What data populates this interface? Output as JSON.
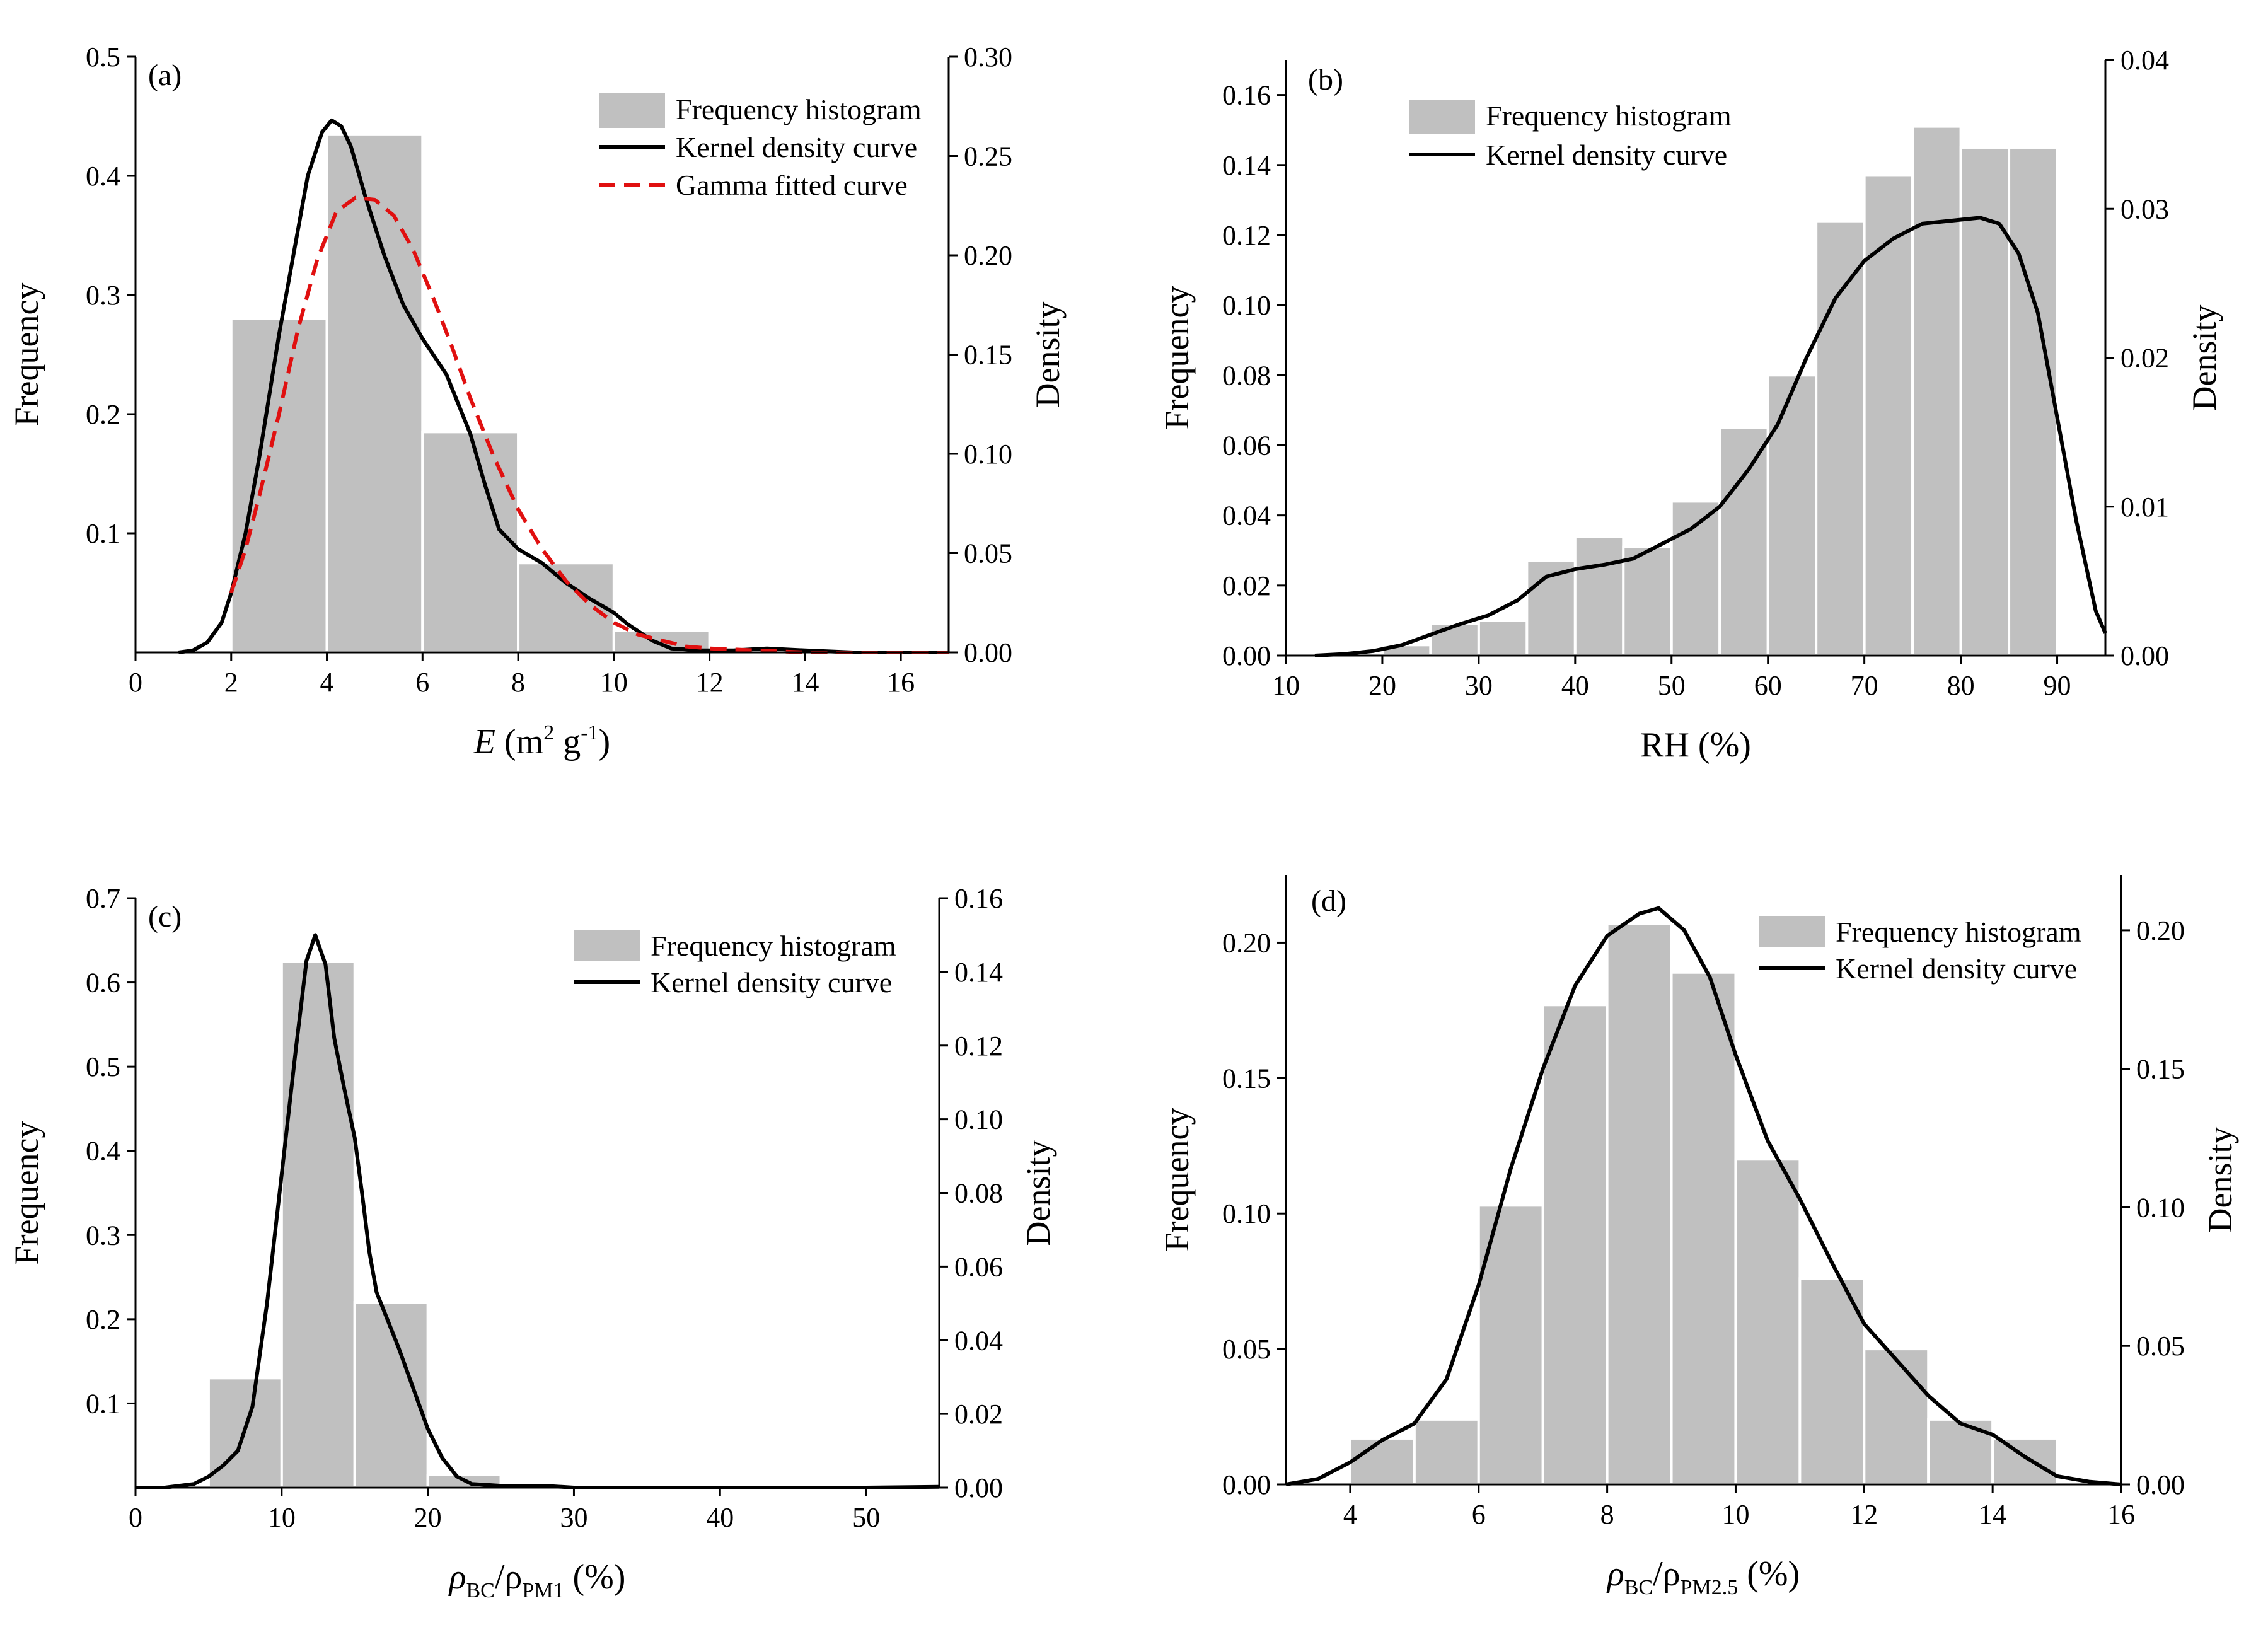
{
  "colors": {
    "bar": "#c0c0c0",
    "bar_edge": "#ffffff",
    "kde": "#000000",
    "gamma": "#e01010",
    "axis": "#000000"
  },
  "chart_data": [
    {
      "id": "a",
      "type": "bar",
      "panel_label": "(a)",
      "xlabel": "E (m² g⁻¹)",
      "xlabel_main": "E",
      "xlabel_rest": " (m",
      "xlabel_sup1": "2",
      "xlabel_mid": " g",
      "xlabel_sup2": "-1",
      "xlabel_end": ")",
      "ylabel": "Frequency",
      "y2label": "Density",
      "xlim": [
        0,
        17
      ],
      "ylim": [
        0,
        0.5
      ],
      "y2lim": [
        0,
        0.3
      ],
      "xticks": [
        0,
        2,
        4,
        6,
        8,
        10,
        12,
        14,
        16
      ],
      "yticks": [
        0.1,
        0.2,
        0.3,
        0.4,
        0.5
      ],
      "y2ticks": [
        0.0,
        0.05,
        0.1,
        0.15,
        0.2,
        0.25,
        0.3
      ],
      "xtick_labels": [
        "0",
        "2",
        "4",
        "6",
        "8",
        "10",
        "12",
        "14",
        "16"
      ],
      "ytick_labels": [
        "0.1",
        "0.2",
        "0.3",
        "0.4",
        "0.5"
      ],
      "y2tick_labels": [
        "0.00",
        "0.05",
        "0.10",
        "0.15",
        "0.20",
        "0.25",
        "0.30"
      ],
      "legend": {
        "position": "top-right",
        "entries": [
          "Frequency histogram",
          "Kernel density curve",
          "Gamma fitted curve"
        ]
      },
      "histogram": {
        "bin_edges": [
          2,
          4,
          6,
          8,
          10,
          12
        ],
        "values": [
          0.28,
          0.435,
          0.185,
          0.075,
          0.018
        ]
      },
      "series": [
        {
          "name": "Kernel density curve",
          "style": "solid",
          "x": [
            0.9,
            1.2,
            1.5,
            1.8,
            2.0,
            2.3,
            2.6,
            3.0,
            3.3,
            3.6,
            3.9,
            4.1,
            4.3,
            4.5,
            4.8,
            5.2,
            5.6,
            6.0,
            6.5,
            7.0,
            7.3,
            7.6,
            8.0,
            8.5,
            9.0,
            9.5,
            10.0,
            10.3,
            10.8,
            11.2,
            11.8,
            12.5,
            13.2,
            14.0,
            15.0,
            16.0,
            17.0
          ],
          "y": [
            0.0,
            0.001,
            0.005,
            0.015,
            0.03,
            0.06,
            0.1,
            0.16,
            0.2,
            0.24,
            0.262,
            0.268,
            0.265,
            0.255,
            0.23,
            0.2,
            0.175,
            0.158,
            0.14,
            0.11,
            0.085,
            0.062,
            0.052,
            0.045,
            0.035,
            0.027,
            0.02,
            0.014,
            0.006,
            0.002,
            0.001,
            0.001,
            0.002,
            0.001,
            0.0,
            0.0,
            0.0
          ]
        },
        {
          "name": "Gamma fitted curve",
          "style": "dashed",
          "x": [
            2.0,
            2.3,
            2.6,
            3.0,
            3.4,
            3.8,
            4.2,
            4.6,
            5.0,
            5.4,
            5.8,
            6.2,
            6.6,
            7.0,
            7.5,
            8.0,
            8.5,
            9.0,
            9.5,
            10.0,
            10.5,
            11.0,
            11.5,
            12.0,
            13.0,
            14.0,
            15.0,
            16.0,
            17.0
          ],
          "y": [
            0.03,
            0.052,
            0.08,
            0.12,
            0.163,
            0.198,
            0.222,
            0.229,
            0.228,
            0.22,
            0.203,
            0.18,
            0.155,
            0.128,
            0.098,
            0.072,
            0.052,
            0.036,
            0.024,
            0.015,
            0.009,
            0.006,
            0.003,
            0.002,
            0.001,
            0.0,
            0.0,
            0.0,
            0.0
          ]
        }
      ]
    },
    {
      "id": "b",
      "type": "bar",
      "panel_label": "(b)",
      "xlabel": "RH (%)",
      "ylabel": "Frequency",
      "y2label": "Density",
      "xlim": [
        10,
        95
      ],
      "ylim": [
        0,
        0.17
      ],
      "y2lim": [
        0,
        0.04
      ],
      "xticks": [
        10,
        20,
        30,
        40,
        50,
        60,
        70,
        80,
        90
      ],
      "yticks": [
        0.0,
        0.02,
        0.04,
        0.06,
        0.08,
        0.1,
        0.12,
        0.14,
        0.16
      ],
      "y2ticks": [
        0.0,
        0.01,
        0.02,
        0.03,
        0.04
      ],
      "xtick_labels": [
        "10",
        "20",
        "30",
        "40",
        "50",
        "60",
        "70",
        "80",
        "90"
      ],
      "ytick_labels": [
        "0.00",
        "0.02",
        "0.04",
        "0.06",
        "0.08",
        "0.10",
        "0.12",
        "0.14",
        "0.16"
      ],
      "y2tick_labels": [
        "0.00",
        "0.01",
        "0.02",
        "0.03",
        "0.04"
      ],
      "legend": {
        "position": "top-left",
        "entries": [
          "Frequency histogram",
          "Kernel density curve"
        ]
      },
      "histogram": {
        "bin_edges": [
          20,
          25,
          30,
          35,
          40,
          45,
          50,
          55,
          60,
          65,
          70,
          75,
          80,
          85,
          90
        ],
        "values": [
          0.003,
          0.009,
          0.01,
          0.027,
          0.034,
          0.031,
          0.044,
          0.065,
          0.08,
          0.124,
          0.137,
          0.151,
          0.145,
          0.145
        ]
      },
      "series": [
        {
          "name": "Kernel density curve",
          "style": "solid",
          "x": [
            13,
            16,
            19,
            22,
            25,
            28,
            31,
            34,
            37,
            40,
            43,
            46,
            49,
            52,
            55,
            58,
            61,
            64,
            67,
            70,
            73,
            76,
            79,
            82,
            84,
            86,
            88,
            90,
            92,
            94,
            95
          ],
          "y": [
            0.0,
            0.0001,
            0.0003,
            0.0007,
            0.0014,
            0.0021,
            0.0027,
            0.0037,
            0.0053,
            0.0058,
            0.0061,
            0.0065,
            0.0075,
            0.0085,
            0.01,
            0.0125,
            0.0155,
            0.02,
            0.024,
            0.0265,
            0.028,
            0.029,
            0.0292,
            0.0294,
            0.029,
            0.027,
            0.023,
            0.016,
            0.009,
            0.003,
            0.0015
          ]
        }
      ]
    },
    {
      "id": "c",
      "type": "bar",
      "panel_label": "(c)",
      "xlabel": "ρBC/ρPM1 (%)",
      "xlabel_main": "ρ",
      "xlabel_sub1": "BC",
      "xlabel_mid": "/ρ",
      "xlabel_sub2": "PM1",
      "xlabel_end": " (%)",
      "ylabel": "Frequency",
      "y2label": "Density",
      "xlim": [
        0,
        55
      ],
      "ylim": [
        0,
        0.7
      ],
      "y2lim": [
        0,
        0.16
      ],
      "xticks": [
        0,
        10,
        20,
        30,
        40,
        50
      ],
      "yticks": [
        0.1,
        0.2,
        0.3,
        0.4,
        0.5,
        0.6,
        0.7
      ],
      "y2ticks": [
        0.0,
        0.02,
        0.04,
        0.06,
        0.08,
        0.1,
        0.12,
        0.14,
        0.16
      ],
      "xtick_labels": [
        "0",
        "10",
        "20",
        "30",
        "40",
        "50"
      ],
      "ytick_labels": [
        "0.1",
        "0.2",
        "0.3",
        "0.4",
        "0.5",
        "0.6",
        "0.7"
      ],
      "y2tick_labels": [
        "0.00",
        "0.02",
        "0.04",
        "0.06",
        "0.08",
        "0.10",
        "0.12",
        "0.14",
        "0.16"
      ],
      "legend": {
        "position": "top-right",
        "entries": [
          "Frequency histogram",
          "Kernel density curve"
        ]
      },
      "histogram": {
        "bin_edges": [
          5,
          10,
          15,
          20,
          25
        ],
        "values": [
          0.13,
          0.625,
          0.22,
          0.015
        ]
      },
      "series": [
        {
          "name": "Kernel density curve",
          "style": "solid",
          "x": [
            0,
            2,
            4,
            5,
            6,
            7,
            8,
            9,
            10,
            11,
            11.7,
            12.3,
            13,
            13.6,
            14.3,
            15,
            15.5,
            16,
            16.5,
            17,
            18,
            19,
            20,
            21,
            22,
            23,
            25,
            28,
            30,
            50,
            55
          ],
          "y": [
            0.0,
            0.0,
            0.001,
            0.003,
            0.006,
            0.01,
            0.022,
            0.05,
            0.085,
            0.12,
            0.143,
            0.15,
            0.142,
            0.122,
            0.108,
            0.095,
            0.08,
            0.064,
            0.053,
            0.048,
            0.038,
            0.027,
            0.016,
            0.008,
            0.003,
            0.001,
            0.0005,
            0.0005,
            0.0,
            0.0,
            0.0002
          ]
        }
      ]
    },
    {
      "id": "d",
      "type": "bar",
      "panel_label": "(d)",
      "xlabel": "ρBC/ρPM2.5 (%)",
      "xlabel_main": "ρ",
      "xlabel_sub1": "BC",
      "xlabel_mid": "/ρ",
      "xlabel_sub2": "PM2.5",
      "xlabel_end": " (%)",
      "ylabel": "Frequency",
      "y2label": "Density",
      "xlim": [
        3,
        16
      ],
      "ylim": [
        0,
        0.225
      ],
      "y2lim": [
        0,
        0.22
      ],
      "xticks": [
        4,
        6,
        8,
        10,
        12,
        14,
        16
      ],
      "yticks": [
        0.0,
        0.05,
        0.1,
        0.15,
        0.2
      ],
      "y2ticks": [
        0.0,
        0.05,
        0.1,
        0.15,
        0.2
      ],
      "xtick_labels": [
        "4",
        "6",
        "8",
        "10",
        "12",
        "14",
        "16"
      ],
      "ytick_labels": [
        "0.00",
        "0.05",
        "0.10",
        "0.15",
        "0.20"
      ],
      "y2tick_labels": [
        "0.00",
        "0.05",
        "0.10",
        "0.15",
        "0.20"
      ],
      "legend": {
        "position": "top-right",
        "entries": [
          "Frequency histogram",
          "Kernel density curve"
        ]
      },
      "histogram": {
        "bin_edges": [
          4,
          5,
          6,
          7,
          8,
          9,
          10,
          11,
          12,
          13,
          14,
          15
        ],
        "values": [
          0.017,
          0.024,
          0.103,
          0.177,
          0.207,
          0.189,
          0.12,
          0.076,
          0.05,
          0.024,
          0.017
        ]
      },
      "series": [
        {
          "name": "Kernel density curve",
          "style": "solid",
          "x": [
            3.0,
            3.5,
            4.0,
            4.5,
            5.0,
            5.5,
            6.0,
            6.5,
            7.0,
            7.5,
            8.0,
            8.5,
            8.8,
            9.2,
            9.6,
            10.0,
            10.5,
            11.0,
            11.5,
            12.0,
            12.5,
            13.0,
            13.5,
            14.0,
            14.5,
            15.0,
            15.5,
            16.0
          ],
          "y": [
            0.0,
            0.002,
            0.008,
            0.016,
            0.022,
            0.038,
            0.072,
            0.114,
            0.15,
            0.18,
            0.198,
            0.206,
            0.208,
            0.2,
            0.183,
            0.155,
            0.124,
            0.103,
            0.08,
            0.058,
            0.045,
            0.032,
            0.022,
            0.018,
            0.01,
            0.003,
            0.001,
            0.0
          ]
        }
      ]
    }
  ]
}
